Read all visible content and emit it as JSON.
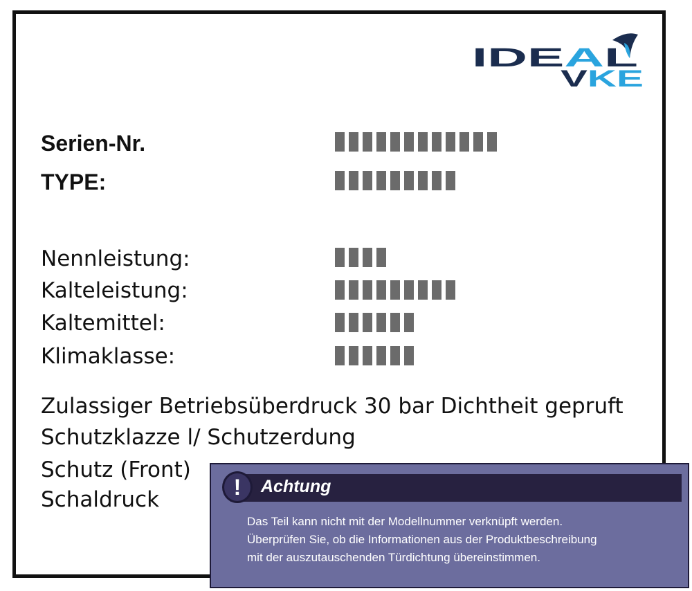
{
  "logo": {
    "line1": "IDEAL",
    "line2": "VKE",
    "colors": {
      "dark": "#1b2d4f",
      "light": "#2aa4de"
    }
  },
  "plate": {
    "serial_label": "Serien-Nr.",
    "type_label": "TYPE:",
    "fields": [
      {
        "label": "Nennleistung:"
      },
      {
        "label": "Kalteleistung:"
      },
      {
        "label": "Kaltemittel:"
      },
      {
        "label": "Klimaklasse:"
      }
    ],
    "notes": [
      "Zulassiger Betriebsüberdruck 30 bar Dichtheit gepruft",
      "Schutzklazze l/ Schutzerdung",
      "Schutz (Front)",
      "Schaldruck"
    ]
  },
  "warning": {
    "icon": "exclamation-icon",
    "icon_glyph": "!",
    "title": "Achtung",
    "lines": [
      "Das Teil kann nicht mit der Modellnummer verknüpft werden.",
      "Überprüfen Sie, ob die Informationen aus der Produktbeschreibung",
      "mit der auszutauschenden Türdichtung übereinstimmen."
    ],
    "colors": {
      "background": "#6c6d9e",
      "bar": "#272140"
    }
  }
}
